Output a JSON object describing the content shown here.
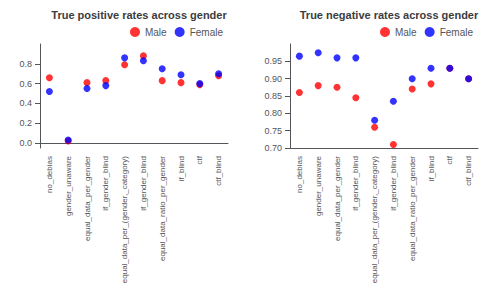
{
  "chart_data": [
    {
      "type": "scatter",
      "title": "True positive rates across gender",
      "categories": [
        "no_debias",
        "gender_unaware",
        "equal_data_per_gender",
        "if_gender_blind",
        "equal_data_per_(gender,_category)",
        "if_gender_blind",
        "equal_data_ratio_per_gender",
        "if_blind",
        "ctf",
        "ctf_blind"
      ],
      "series": [
        {
          "name": "Male",
          "color": "red",
          "marker": "circle",
          "values": [
            0.66,
            0.02,
            0.61,
            0.63,
            0.79,
            0.88,
            0.63,
            0.61,
            0.59,
            0.68
          ]
        },
        {
          "name": "Female",
          "color": "blue",
          "marker": "circle",
          "values": [
            0.52,
            0.03,
            0.55,
            0.58,
            0.86,
            0.83,
            0.75,
            0.69,
            0.6,
            0.7
          ]
        }
      ],
      "ylim": [
        -0.05,
        1.0
      ],
      "yticks": [
        {
          "value": 0.0,
          "label": "0.0"
        },
        0.2,
        0.4,
        0.6,
        0.8
      ],
      "grid": false,
      "legend": "upper right"
    },
    {
      "type": "scatter",
      "title": "True negative rates across gender",
      "categories": [
        "no_debias",
        "gender_unaware",
        "equal_data_per_gender",
        "if_gender_blind",
        "equal_data_per_(gender,_category)",
        "if_gender_blind",
        "equal_data_ratio_per_gender",
        "if_blind",
        "ctf",
        "ctf_blind"
      ],
      "series": [
        {
          "name": "Male",
          "color": "red",
          "marker": "circle",
          "values": [
            0.86,
            0.88,
            0.875,
            0.845,
            0.76,
            0.71,
            0.87,
            0.885,
            0.93,
            0.9
          ]
        },
        {
          "name": "Female",
          "color": "blue",
          "marker": "circle",
          "values": [
            0.965,
            0.975,
            0.96,
            0.96,
            0.78,
            0.835,
            0.9,
            0.93,
            0.93,
            0.9
          ]
        }
      ],
      "ylim": [
        0.7,
        1.0
      ],
      "yticks": [
        {
          "value": 0.7,
          "label": "0.70"
        },
        0.75,
        {
          "value": 0.8,
          "label": "0.80"
        },
        0.85,
        {
          "value": 0.9,
          "label": "0.90"
        },
        0.95
      ],
      "grid": false,
      "legend": "upper right"
    }
  ]
}
